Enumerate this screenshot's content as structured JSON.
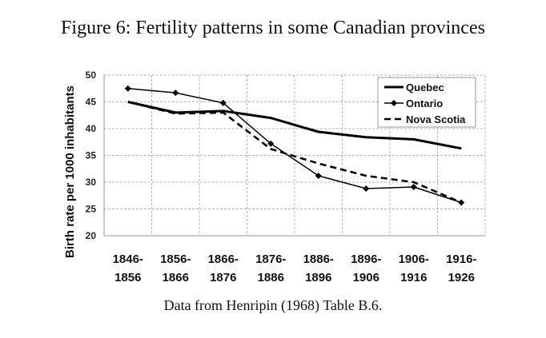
{
  "figure": {
    "title": "Figure 6: Fertility patterns in some Canadian provinces",
    "caption": "Data from Henripin (1968) Table B.6."
  },
  "chart_data": {
    "type": "line",
    "ylabel": "Birth rate per 1000 inhabitants",
    "ylim": [
      20,
      50
    ],
    "yticks": [
      20,
      25,
      30,
      35,
      40,
      45,
      50
    ],
    "grid": true,
    "legend_position": "top-right",
    "categories": [
      [
        "1846-",
        "1856"
      ],
      [
        "1856-",
        "1866"
      ],
      [
        "1866-",
        "1876"
      ],
      [
        "1876-",
        "1886"
      ],
      [
        "1886-",
        "1896"
      ],
      [
        "1896-",
        "1906"
      ],
      [
        "1906-",
        "1916"
      ],
      [
        "1916-",
        "1926"
      ]
    ],
    "series": [
      {
        "name": "Quebec",
        "style": "solid-thick",
        "marker": "none",
        "color": "#000000",
        "values": [
          45,
          43,
          43.3,
          42,
          39.4,
          38.4,
          38,
          36.3
        ]
      },
      {
        "name": "Ontario",
        "style": "solid-thin",
        "marker": "diamond",
        "color": "#000000",
        "values": [
          47.5,
          46.7,
          44.8,
          37.2,
          31.2,
          28.8,
          29.1,
          26.2
        ]
      },
      {
        "name": "Nova Scotia",
        "style": "dashed",
        "marker": "none",
        "color": "#000000",
        "values": [
          45,
          42.8,
          43,
          36.2,
          33.5,
          31.2,
          30,
          26.2
        ]
      }
    ]
  }
}
